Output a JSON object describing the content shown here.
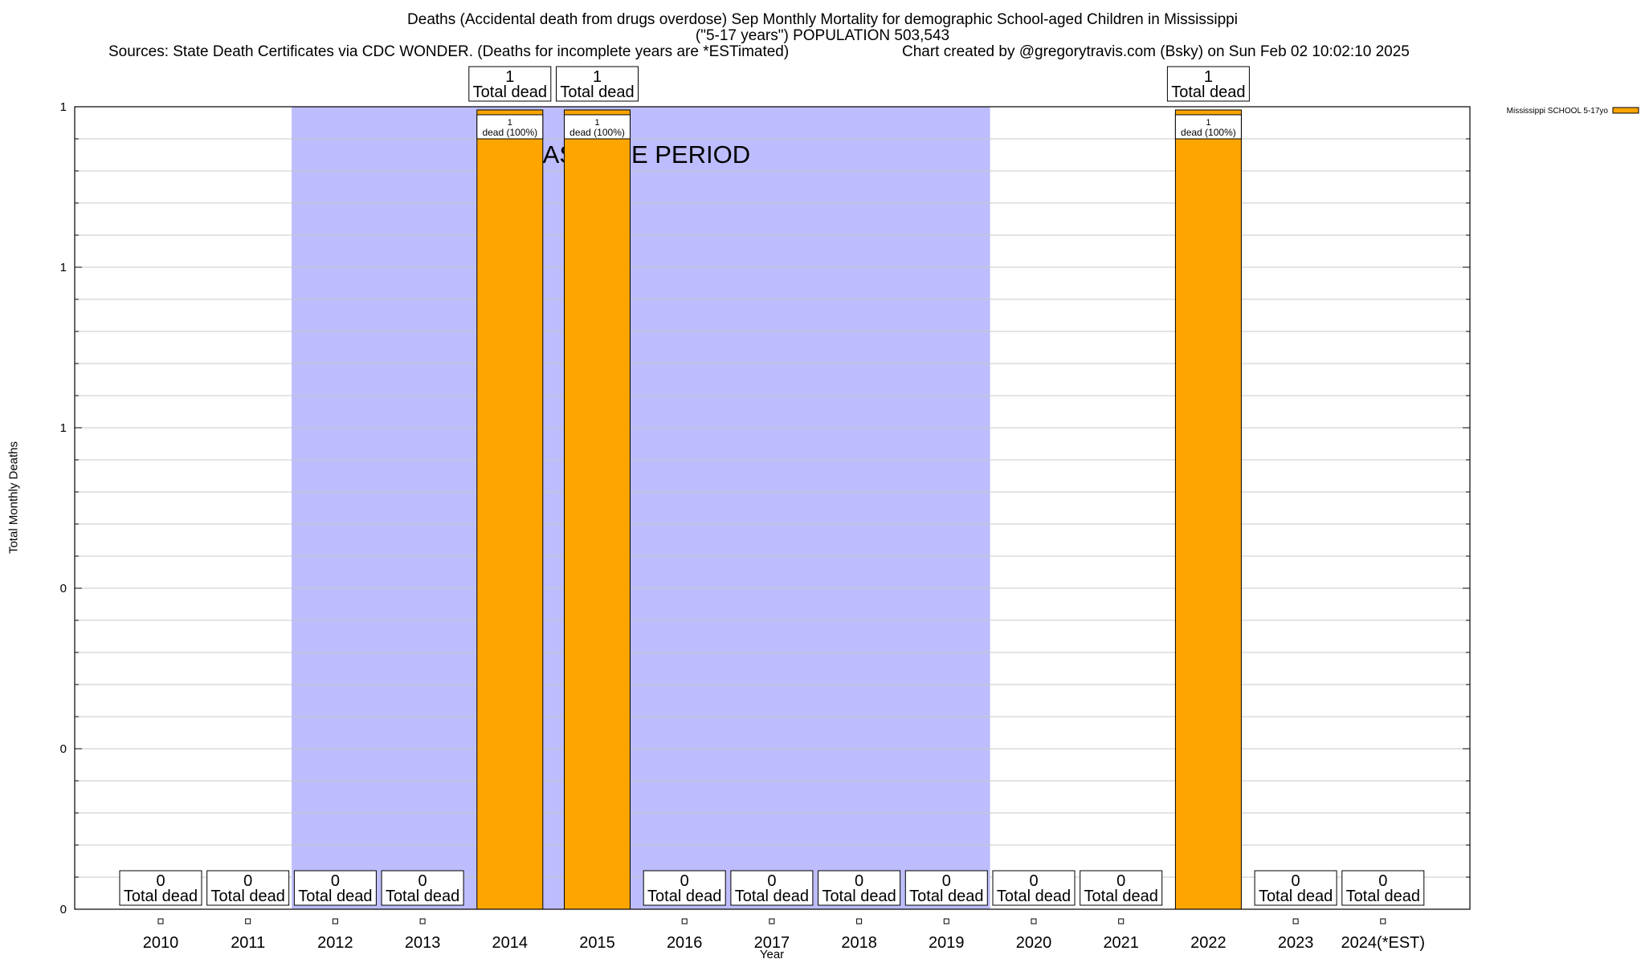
{
  "chart_data": {
    "type": "bar",
    "title": "Deaths (Accidental death from drugs overdose) Sep Monthly Mortality for demographic School-aged Children in Mississippi",
    "subtitle": "(\"5-17 years\") POPULATION 503,543",
    "sources": "Sources: State Death Certificates via CDC WONDER. (Deaths for incomplete years are *ESTimated)",
    "credit": "Chart created by @gregorytravis.com (Bsky) on Sun Feb 02 10:02:10 2025",
    "xlabel": "Year",
    "ylabel": "Total Monthly Deaths",
    "categories": [
      "2010",
      "2011",
      "2012",
      "2013",
      "2014",
      "2015",
      "2016",
      "2017",
      "2018",
      "2019",
      "2020",
      "2021",
      "2022",
      "2023",
      "2024(*EST)"
    ],
    "series": [
      {
        "name": "Mississippi SCHOOL 5-17yo",
        "values": [
          0,
          0,
          0,
          0,
          1,
          1,
          0,
          0,
          0,
          0,
          0,
          0,
          1,
          0,
          0
        ]
      }
    ],
    "ylim": [
      0,
      1
    ],
    "y_ticks": [
      {
        "value": 0,
        "label": "0"
      },
      {
        "value": 0.2,
        "label": "0"
      },
      {
        "value": 0.4,
        "label": "0"
      },
      {
        "value": 0.6,
        "label": "1"
      },
      {
        "value": 0.8,
        "label": "1"
      },
      {
        "value": 1.0,
        "label": "1"
      }
    ],
    "total_label": "Total dead",
    "bar_label_suffix": "dead (100%)",
    "baseline_period": {
      "label": "BASELINE PERIOD",
      "from": "2012",
      "to": "2019"
    },
    "grid": true,
    "legend_position": "top-right",
    "colors": {
      "bar": "#ffa500",
      "baseline": "#bdbdfd",
      "grid": "#c8c8c8"
    }
  }
}
